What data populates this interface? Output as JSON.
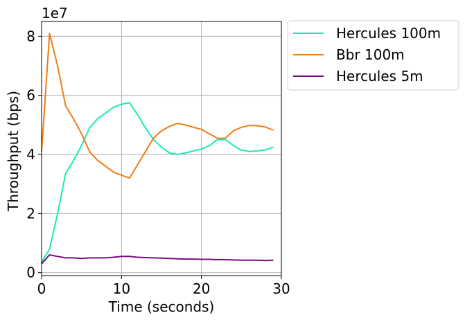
{
  "chart_data": {
    "type": "line",
    "title": "",
    "xlabel": "Time (seconds)",
    "ylabel": "Throughput (bps)",
    "offset_text": "1e7",
    "xlim": [
      0,
      30
    ],
    "ylim": [
      -0.1,
      8.5
    ],
    "xticks": [
      0,
      10,
      20,
      30
    ],
    "yticks": [
      0,
      2,
      4,
      6,
      8
    ],
    "xtick_labels": [
      "0",
      "10",
      "20",
      "30"
    ],
    "ytick_labels": [
      "0",
      "2",
      "4",
      "6",
      "8"
    ],
    "grid": true,
    "legend_position": "outside-top-right",
    "x": [
      0,
      1,
      2,
      3,
      4,
      5,
      6,
      7,
      8,
      9,
      10,
      11,
      12,
      13,
      14,
      15,
      16,
      17,
      18,
      19,
      20,
      21,
      22,
      23,
      24,
      25,
      26,
      27,
      28,
      29
    ],
    "series": [
      {
        "name": "Hercules 100m",
        "color": "#1de9b6",
        "values": [
          0.35,
          0.8,
          2.0,
          3.35,
          3.8,
          4.3,
          4.9,
          5.2,
          5.4,
          5.6,
          5.7,
          5.75,
          5.35,
          4.9,
          4.5,
          4.25,
          4.05,
          4.0,
          4.05,
          4.12,
          4.18,
          4.3,
          4.5,
          4.5,
          4.3,
          4.15,
          4.1,
          4.12,
          4.15,
          4.25
        ]
      },
      {
        "name": "Bbr 100m",
        "color": "#f07b15",
        "values": [
          4.1,
          8.1,
          7.0,
          5.65,
          5.2,
          4.7,
          4.1,
          3.8,
          3.6,
          3.4,
          3.3,
          3.2,
          3.65,
          4.1,
          4.55,
          4.8,
          4.95,
          5.05,
          5.0,
          4.92,
          4.85,
          4.7,
          4.55,
          4.55,
          4.8,
          4.92,
          4.98,
          4.97,
          4.93,
          4.82
        ]
      },
      {
        "name": "Hercules 5m",
        "color": "#7a0a82",
        "values": [
          0.3,
          0.6,
          0.55,
          0.5,
          0.5,
          0.48,
          0.5,
          0.5,
          0.5,
          0.52,
          0.55,
          0.55,
          0.52,
          0.51,
          0.5,
          0.49,
          0.48,
          0.47,
          0.46,
          0.46,
          0.45,
          0.45,
          0.44,
          0.44,
          0.43,
          0.42,
          0.42,
          0.42,
          0.41,
          0.42
        ]
      }
    ]
  }
}
